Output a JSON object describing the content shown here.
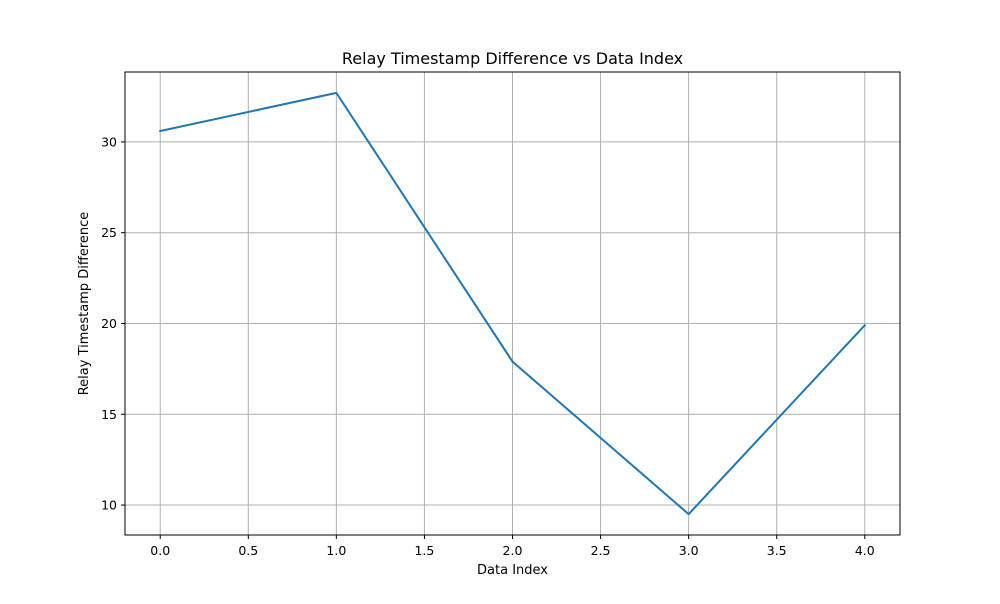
{
  "chart_data": {
    "type": "line",
    "title": "Relay Timestamp Difference vs Data Index",
    "xlabel": "Data Index",
    "ylabel": "Relay Timestamp Difference",
    "xlim": [
      -0.2,
      4.2
    ],
    "ylim": [
      8.35,
      33.85
    ],
    "x_ticks": [
      0.0,
      0.5,
      1.0,
      1.5,
      2.0,
      2.5,
      3.0,
      3.5,
      4.0
    ],
    "x_tick_labels": [
      "0.0",
      "0.5",
      "1.0",
      "1.5",
      "2.0",
      "2.5",
      "3.0",
      "3.5",
      "4.0"
    ],
    "y_ticks": [
      10,
      15,
      20,
      25,
      30
    ],
    "y_tick_labels": [
      "10",
      "15",
      "20",
      "25",
      "30"
    ],
    "grid": true,
    "series": [
      {
        "x": [
          0,
          1,
          2,
          3,
          4
        ],
        "y": [
          30.6,
          32.7,
          17.9,
          9.5,
          19.9
        ],
        "color": "#1f77b4"
      }
    ]
  }
}
